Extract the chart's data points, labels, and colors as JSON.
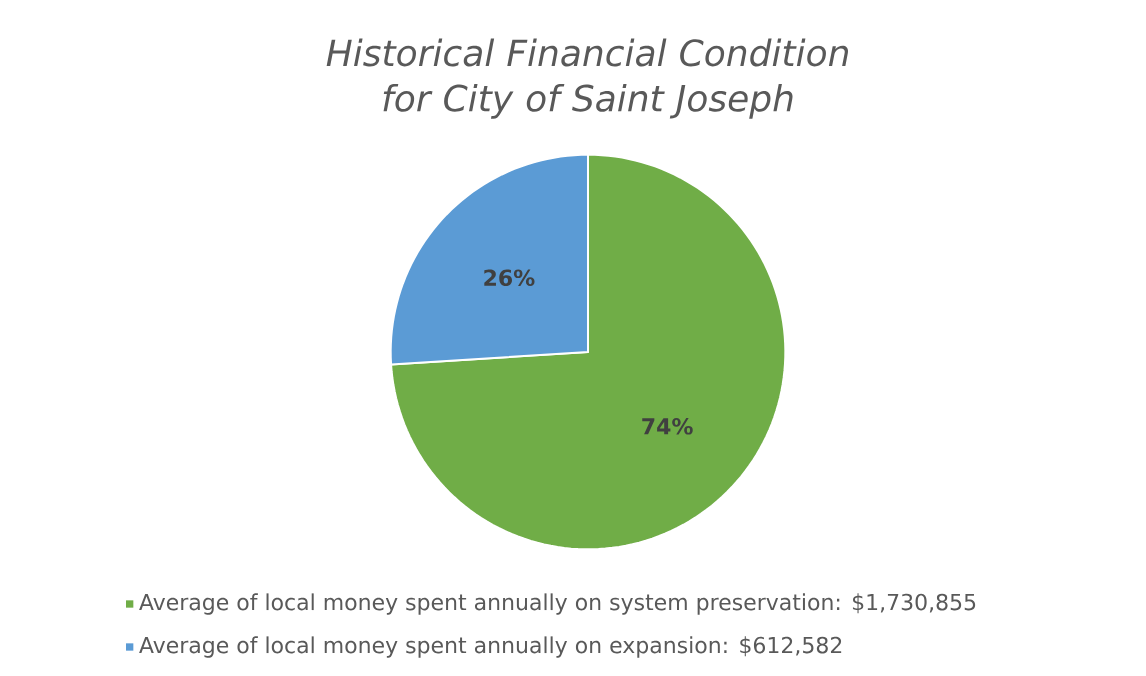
{
  "chart_data": {
    "type": "pie",
    "title": "Historical Financial Condition for City of Saint Joseph",
    "categories": [
      "Average of local money spent annually on system preservation: $1,730,855",
      "Average of local money spent annually on expansion: $612,582"
    ],
    "values": [
      74,
      26
    ],
    "colors": [
      "#70ad47",
      "#5b9bd5"
    ],
    "value_labels": [
      "74%",
      "26%"
    ],
    "legend": "bottom"
  }
}
